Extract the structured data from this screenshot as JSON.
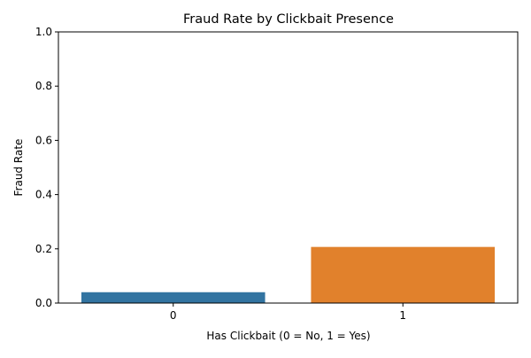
{
  "chart_data": {
    "type": "bar",
    "title": "Fraud Rate by Clickbait Presence",
    "xlabel": "Has Clickbait (0 = No, 1 = Yes)",
    "ylabel": "Fraud Rate",
    "categories": [
      "0",
      "1"
    ],
    "values": [
      0.04,
      0.207
    ],
    "colors": [
      "#3274a1",
      "#e1812c"
    ],
    "ylim": [
      0,
      1.0
    ],
    "yticks": [
      "0.0",
      "0.2",
      "0.4",
      "0.6",
      "0.8",
      "1.0"
    ],
    "grid": false,
    "legend": "none"
  }
}
